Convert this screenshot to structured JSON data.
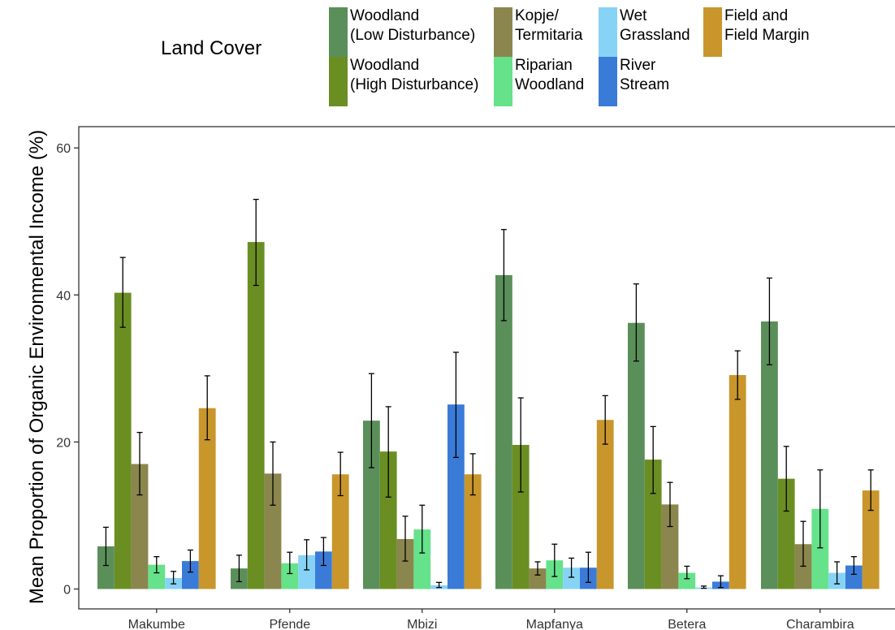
{
  "chart_data": {
    "type": "bar",
    "ylabel": "Mean Proportion of Organic Environmental Income (%)",
    "xlabel": "",
    "ylim": [
      0,
      65
    ],
    "yticks": [
      0,
      20,
      40,
      60
    ],
    "grid": false,
    "legend": {
      "title": "Land Cover",
      "placement": "top",
      "entries": [
        {
          "line1": "Woodland",
          "line2": "(Low Disturbance)",
          "color": "#5a8f5a"
        },
        {
          "line1": "Woodland",
          "line2": "(High Disturbance)",
          "color": "#6b8e23"
        },
        {
          "line1": "Kopje/",
          "line2": "Termitaria",
          "color": "#8b864e"
        },
        {
          "line1": "Riparian",
          "line2": "Woodland",
          "color": "#66e28a"
        },
        {
          "line1": "Wet",
          "line2": "Grassland",
          "color": "#87d3f5"
        },
        {
          "line1": "River",
          "line2": "Stream",
          "color": "#3b7bd8"
        },
        {
          "line1": "Field and",
          "line2": "Field Margin",
          "color": "#c9962b"
        }
      ]
    },
    "categories": [
      "Makumbe",
      "Pfende",
      "Mbizi",
      "Mapfanya",
      "Betera",
      "Charambira"
    ],
    "series": [
      {
        "name": "Woodland (Low Disturbance)",
        "color": "#5a8f5a",
        "values": [
          5.8,
          2.8,
          22.9,
          42.7,
          36.2,
          36.4
        ],
        "lower": [
          3.2,
          1.0,
          16.5,
          36.5,
          31.0,
          30.5
        ],
        "upper": [
          8.4,
          4.6,
          29.3,
          48.9,
          41.5,
          42.3
        ]
      },
      {
        "name": "Woodland (High Disturbance)",
        "color": "#6b8e23",
        "values": [
          40.3,
          47.2,
          18.7,
          19.6,
          17.6,
          15.0
        ],
        "lower": [
          35.6,
          41.3,
          12.5,
          13.2,
          13.0,
          10.6
        ],
        "upper": [
          45.1,
          53.0,
          24.8,
          26.0,
          22.1,
          19.4
        ]
      },
      {
        "name": "Kopje/ Termitaria",
        "color": "#8b864e",
        "values": [
          17.0,
          15.7,
          6.8,
          2.8,
          11.5,
          6.1
        ],
        "lower": [
          12.8,
          11.4,
          3.8,
          1.9,
          8.5,
          3.1
        ],
        "upper": [
          21.3,
          20.0,
          9.9,
          3.7,
          14.5,
          9.2
        ]
      },
      {
        "name": "Riparian Woodland",
        "color": "#66e28a",
        "values": [
          3.3,
          3.5,
          8.1,
          3.9,
          2.2,
          10.9
        ],
        "lower": [
          2.2,
          2.1,
          4.9,
          1.7,
          1.4,
          5.6
        ],
        "upper": [
          4.4,
          5.0,
          11.4,
          6.1,
          3.1,
          16.2
        ]
      },
      {
        "name": "Wet Grassland",
        "color": "#87d3f5",
        "values": [
          1.5,
          4.6,
          0.5,
          2.9,
          0.2,
          2.2
        ],
        "lower": [
          0.7,
          2.6,
          0.2,
          1.6,
          0.1,
          0.7
        ],
        "upper": [
          2.4,
          6.7,
          0.9,
          4.2,
          0.4,
          3.7
        ]
      },
      {
        "name": "River Stream",
        "color": "#3b7bd8",
        "values": [
          3.8,
          5.1,
          25.1,
          2.9,
          1.0,
          3.2
        ],
        "lower": [
          2.3,
          3.2,
          17.9,
          0.9,
          0.2,
          2.0
        ],
        "upper": [
          5.3,
          7.0,
          32.2,
          5.0,
          1.8,
          4.4
        ]
      },
      {
        "name": "Field and Field Margin",
        "color": "#c9962b",
        "values": [
          24.6,
          15.6,
          15.6,
          23.0,
          29.1,
          13.4
        ],
        "lower": [
          20.3,
          12.7,
          12.8,
          19.7,
          25.8,
          10.7
        ],
        "upper": [
          29.0,
          18.6,
          18.4,
          26.3,
          32.4,
          16.2
        ]
      }
    ]
  }
}
